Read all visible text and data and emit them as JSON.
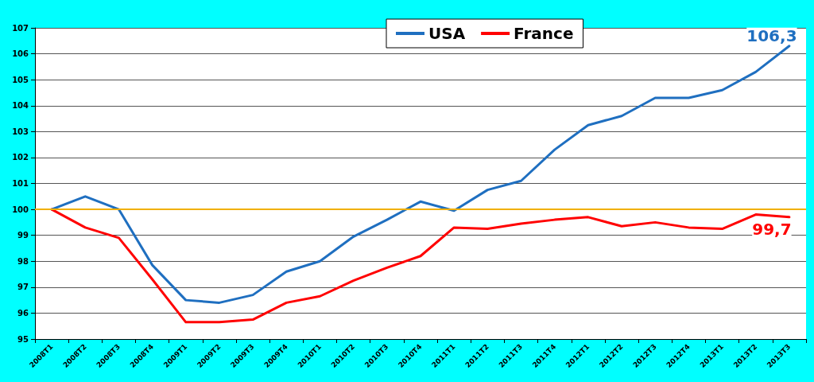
{
  "chart_data": {
    "type": "line",
    "categories": [
      "2008T1",
      "2008T2",
      "2008T3",
      "2008T4",
      "2009T1",
      "2009T2",
      "2009T3",
      "2009T4",
      "2010T1",
      "2010T2",
      "2010T3",
      "2010T4",
      "2011T1",
      "2011T2",
      "2011T3",
      "2011T4",
      "2012T1",
      "2012T2",
      "2012T3",
      "2012T4",
      "2013T1",
      "2013T2",
      "2013T3"
    ],
    "series": [
      {
        "name": "USA",
        "color": "#1f6fc0",
        "values": [
          100,
          100.5,
          100.0,
          97.85,
          96.5,
          96.4,
          96.7,
          97.6,
          98.0,
          98.95,
          99.6,
          100.3,
          99.95,
          100.75,
          101.1,
          102.3,
          103.25,
          103.6,
          104.3,
          104.3,
          104.6,
          105.3,
          106.3
        ],
        "value_labels": [
          null,
          null,
          null,
          null,
          null,
          null,
          null,
          null,
          null,
          null,
          null,
          null,
          null,
          null,
          null,
          null,
          null,
          null,
          null,
          null,
          null,
          null,
          "106,3"
        ]
      },
      {
        "name": "France",
        "color": "#ff0000",
        "values": [
          100,
          99.3,
          98.9,
          97.3,
          95.65,
          95.65,
          95.75,
          96.4,
          96.65,
          97.25,
          97.75,
          98.2,
          99.3,
          99.25,
          99.45,
          99.6,
          99.7,
          99.35,
          99.5,
          99.3,
          99.25,
          99.8,
          99.7
        ],
        "value_labels": [
          null,
          null,
          null,
          null,
          null,
          null,
          null,
          null,
          null,
          null,
          null,
          null,
          null,
          null,
          null,
          null,
          null,
          null,
          null,
          null,
          null,
          null,
          "99,7"
        ]
      }
    ],
    "ylim": [
      95,
      107
    ],
    "yticks": [
      95,
      96,
      97,
      98,
      99,
      100,
      101,
      102,
      103,
      104,
      105,
      106,
      107
    ],
    "ref_lines": [
      {
        "axis": "y",
        "value": 100,
        "color": "#f0b000"
      }
    ],
    "grid": "y",
    "legend": "top",
    "marker": "none",
    "line_style": "solid"
  }
}
